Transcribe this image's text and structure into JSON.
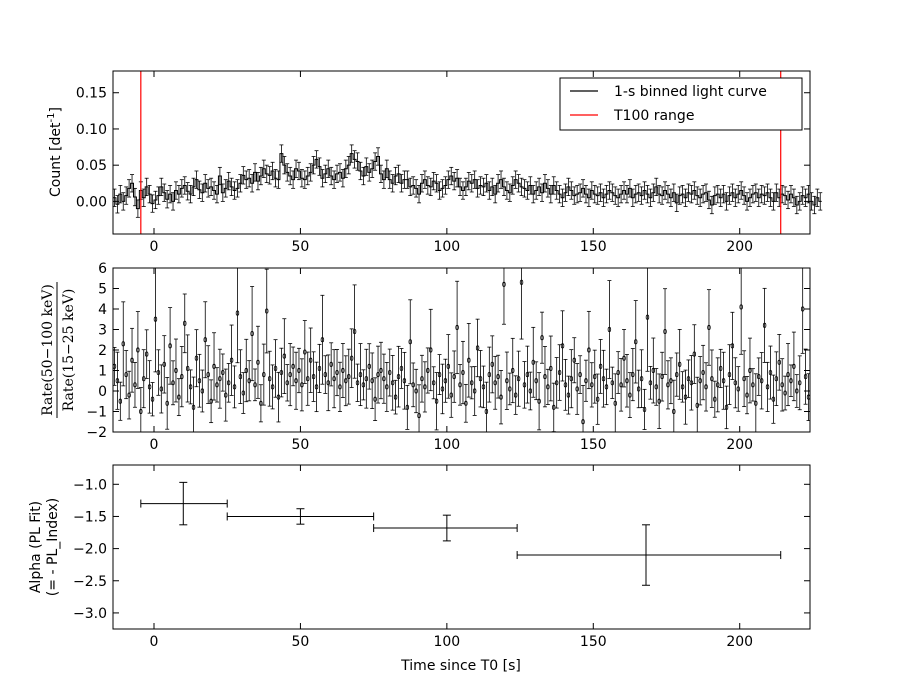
{
  "chart_data": [
    {
      "type": "line",
      "ylabel": "Count [det",
      "ylabel_sup": "-1",
      "ylabel_close": "]",
      "xlim": [
        -14,
        224
      ],
      "ylim": [
        -0.045,
        0.18
      ],
      "xticks": [
        0,
        50,
        100,
        150,
        200
      ],
      "xtick_labels": [
        "0",
        "50",
        "100",
        "150",
        "200"
      ],
      "yticks": [
        0.0,
        0.05,
        0.1,
        0.15
      ],
      "ytick_labels": [
        "0.00",
        "0.05",
        "0.10",
        "0.15"
      ],
      "legend": {
        "placement": "top-right",
        "entries": [
          {
            "label": "1-s binned light curve",
            "color": "#000000"
          },
          {
            "label": "T100 range",
            "color": "#ff0000"
          }
        ]
      },
      "vlines": {
        "x": [
          -4.5,
          214
        ],
        "color": "#ff0000"
      },
      "series": [
        {
          "name": "1-s binned light curve",
          "color": "#000000",
          "x_start": -14,
          "step": 1,
          "values": [
            0.005,
            -0.004,
            0.01,
            0.0,
            0.008,
            0.018,
            0.025,
            0.006,
            -0.01,
            0.015,
            0.005,
            0.02,
            0.01,
            -0.003,
            0.002,
            0.008,
            0.02,
            0.012,
            0.003,
            0.01,
            0.0,
            0.015,
            0.01,
            0.018,
            0.022,
            0.014,
            0.01,
            0.02,
            0.03,
            0.016,
            0.012,
            0.025,
            0.018,
            0.02,
            0.015,
            0.01,
            0.035,
            0.012,
            0.018,
            0.028,
            0.02,
            0.015,
            0.018,
            0.025,
            0.036,
            0.03,
            0.032,
            0.025,
            0.04,
            0.028,
            0.035,
            0.045,
            0.038,
            0.036,
            0.042,
            0.032,
            0.03,
            0.066,
            0.05,
            0.04,
            0.035,
            0.03,
            0.045,
            0.042,
            0.032,
            0.03,
            0.035,
            0.04,
            0.05,
            0.058,
            0.048,
            0.032,
            0.038,
            0.045,
            0.035,
            0.03,
            0.038,
            0.04,
            0.032,
            0.045,
            0.05,
            0.066,
            0.058,
            0.055,
            0.042,
            0.035,
            0.048,
            0.04,
            0.045,
            0.055,
            0.062,
            0.038,
            0.03,
            0.045,
            0.03,
            0.025,
            0.035,
            0.038,
            0.025,
            0.03,
            0.03,
            0.02,
            0.022,
            0.018,
            0.01,
            0.025,
            0.03,
            0.022,
            0.02,
            0.028,
            0.025,
            0.015,
            0.018,
            0.022,
            0.03,
            0.035,
            0.028,
            0.032,
            0.02,
            0.015,
            0.02,
            0.028,
            0.025,
            0.03,
            0.018,
            0.022,
            0.02,
            0.025,
            0.015,
            0.02,
            0.01,
            0.025,
            0.03,
            0.02,
            0.015,
            0.012,
            0.022,
            0.03,
            0.025,
            0.02,
            0.018,
            0.015,
            0.022,
            0.01,
            0.015,
            0.02,
            0.012,
            0.025,
            0.018,
            0.01,
            0.022,
            0.015,
            0.01,
            0.005,
            0.012,
            0.02,
            0.015,
            0.008,
            0.01,
            0.012,
            0.018,
            0.01,
            0.005,
            0.015,
            0.01,
            0.008,
            0.012,
            0.005,
            0.01,
            0.015,
            0.012,
            0.008,
            0.005,
            0.01,
            0.015,
            0.01,
            0.018,
            0.005,
            0.01,
            0.012,
            0.008,
            0.015,
            0.01,
            0.005,
            0.012,
            0.02,
            0.01,
            0.008,
            0.015,
            0.01,
            0.005,
            0.012,
            -0.002,
            0.008,
            0.01,
            0.005,
            0.012,
            0.01,
            0.015,
            0.008,
            0.005,
            0.01,
            0.012,
            0.002,
            -0.005,
            0.008,
            0.01,
            0.005,
            0.01,
            0.0,
            0.008,
            0.012,
            0.005,
            0.01,
            0.015,
            0.008,
            0.0,
            0.005,
            0.01,
            0.012,
            0.005,
            0.01,
            0.008,
            0.012,
            0.005,
            0.0,
            0.012,
            0.005,
            0.01,
            0.008,
            0.002,
            0.01,
            0.005,
            -0.005,
            0.0,
            0.008,
            0.005,
            0.01,
            0.0,
            -0.005,
            0.005,
            0.0
          ],
          "err": 0.012
        }
      ]
    },
    {
      "type": "scatter",
      "ylabel": "Rate(50−100 keV)",
      "ylabel_denominator": "Rate(15−25 keV)",
      "xlim": [
        -14,
        224
      ],
      "ylim": [
        -2,
        6
      ],
      "xticks": [
        0,
        50,
        100,
        150,
        200
      ],
      "xtick_labels": [
        "0",
        "50",
        "100",
        "150",
        "200"
      ],
      "yticks": [
        -2,
        -1,
        0,
        1,
        2,
        3,
        4,
        5,
        6
      ],
      "ytick_labels": [
        "−2",
        "−1",
        "0",
        "1",
        "2",
        "3",
        "4",
        "5",
        "6"
      ],
      "series": [
        {
          "name": "",
          "color": "#000000",
          "x_start": -14,
          "step": 1,
          "values": [
            1.2,
            0.5,
            -0.5,
            2.3,
            0.8,
            -0.2,
            1.5,
            0.3,
            2.0,
            -1.0,
            0.6,
            1.8,
            0.2,
            -0.4,
            3.5,
            0.9,
            0.1,
            1.3,
            -0.6,
            2.2,
            0.4,
            1.0,
            -0.3,
            0.7,
            3.3,
            1.1,
            0.2,
            -0.8,
            1.6,
            0.5,
            0.0,
            2.5,
            0.8,
            -0.5,
            1.2,
            0.3,
            0.6,
            0.9,
            -0.2,
            0.4,
            1.5,
            0.2,
            3.8,
            0.7,
            -0.1,
            1.0,
            0.5,
            2.8,
            0.3,
            1.4,
            -0.6,
            0.8,
            3.9,
            0.6,
            0.2,
            1.1,
            -0.3,
            0.9,
            1.7,
            0.4,
            0.8,
            1.2,
            0.5,
            1.0,
            0.3,
            1.9,
            0.6,
            1.5,
            0.7,
            0.2,
            1.1,
            2.5,
            0.8,
            0.4,
            1.3,
            0.6,
            0.9,
            0.2,
            1.0,
            0.5,
            0.7,
            1.6,
            2.9,
            0.4,
            0.8,
            0.3,
            0.6,
            1.2,
            0.5,
            -0.4,
            0.8,
            1.0,
            0.6,
            0.2,
            0.9,
            0.4,
            -0.3,
            0.7,
            1.1,
            0.5,
            -0.8,
            2.4,
            0.3,
            0.0,
            -1.2,
            0.6,
            0.2,
            1.0,
            2.0,
            0.4,
            -0.5,
            0.8,
            0.1,
            0.5,
            1.2,
            -0.2,
            0.7,
            3.1,
            0.3,
            0.9,
            -0.6,
            1.5,
            0.4,
            0.0,
            2.1,
            0.6,
            0.2,
            -1.0,
            0.8,
            1.3,
            0.4,
            0.7,
            -0.3,
            5.2,
            0.5,
            0.1,
            1.0,
            -0.2,
            0.6,
            5.3,
            0.3,
            0.8,
            0.0,
            1.4,
            0.5,
            -0.5,
            2.6,
            0.7,
            0.2,
            1.1,
            -0.8,
            0.4,
            0.9,
            2.2,
            0.3,
            -0.2,
            0.6,
            1.5,
            0.1,
            0.8,
            -1.5,
            0.5,
            2.0,
            0.3,
            0.7,
            -0.4,
            1.2,
            0.6,
            0.2,
            3.0,
            0.4,
            -0.6,
            0.9,
            0.3,
            1.6,
            0.5,
            -0.2,
            0.8,
            2.4,
            0.1,
            0.6,
            -0.9,
            3.6,
            0.4,
            1.0,
            0.2,
            -0.5,
            0.7,
            2.9,
            0.3,
            0.5,
            -1.0,
            0.8,
            1.3,
            0.2,
            -0.3,
            0.6,
            0.4,
            1.8,
            -0.7,
            0.5,
            0.9,
            0.2,
            3.1,
            0.6,
            -0.4,
            0.3,
            1.1,
            0.5,
            -0.8,
            0.8,
            2.2,
            0.4,
            0.1,
            4.1,
            0.6,
            -0.2,
            1.0,
            0.3,
            -0.6,
            0.7,
            0.5,
            3.2,
            0.2,
            0.9,
            -0.4,
            0.6,
            1.4,
            0.3,
            -0.1,
            0.8,
            0.5,
            1.2,
            0.0,
            0.4,
            4.0,
            0.7,
            -0.3,
            0.2,
            0.9,
            0.5,
            0.0,
            2.4,
            0.6
          ],
          "err": 1.2
        }
      ]
    },
    {
      "type": "scatter",
      "xlabel": "Time since T0 [s]",
      "ylabel": "Alpha (PL Fit)",
      "ylabel_line2": "(= - PL_Index)",
      "xlim": [
        -14,
        224
      ],
      "ylim": [
        -3.25,
        -0.7
      ],
      "xticks": [
        0,
        50,
        100,
        150,
        200
      ],
      "xtick_labels": [
        "0",
        "50",
        "100",
        "150",
        "200"
      ],
      "yticks": [
        -3.0,
        -2.5,
        -2.0,
        -1.5,
        -1.0
      ],
      "ytick_labels": [
        "−3.0",
        "−2.5",
        "−2.0",
        "−1.5",
        "−1.0"
      ],
      "series": [
        {
          "name": "",
          "color": "#000000",
          "x": [
            10,
            50,
            100,
            168
          ],
          "xerr_low": [
            14.5,
            25,
            25,
            44
          ],
          "xerr_high": [
            15,
            25,
            24,
            46
          ],
          "y": [
            -1.3,
            -1.5,
            -1.68,
            -2.1
          ],
          "yerr_low": [
            0.33,
            0.12,
            0.2,
            0.47
          ],
          "yerr_high": [
            0.33,
            0.12,
            0.2,
            0.47
          ]
        }
      ]
    }
  ]
}
